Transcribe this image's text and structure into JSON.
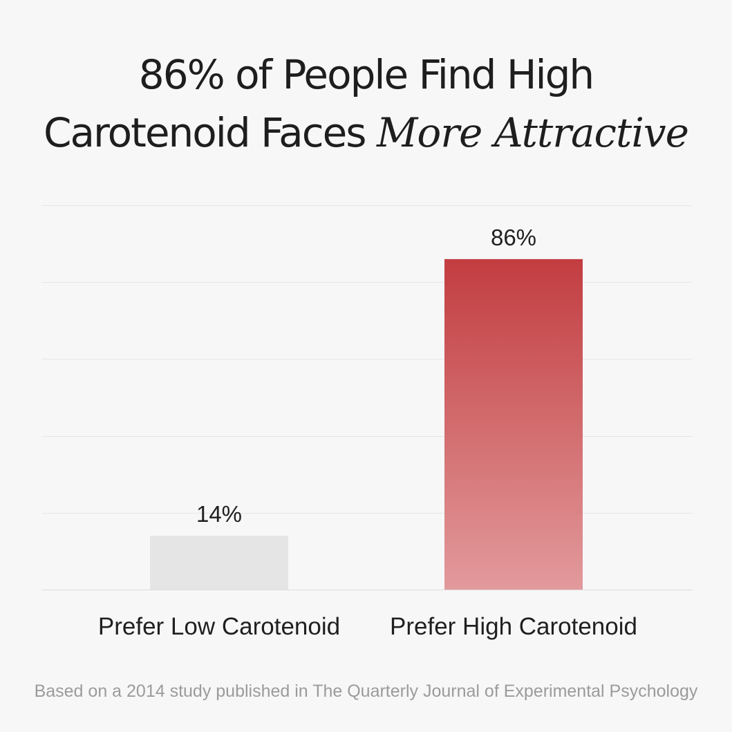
{
  "title": {
    "line1": "86% of People Find High",
    "line2_plain": "Carotenoid Faces ",
    "line2_emph": "More Attractive"
  },
  "footer": "Based on a 2014 study published in The Quarterly Journal of Experimental Psychology",
  "chart_data": {
    "type": "bar",
    "categories": [
      "Prefer Low Carotenoid",
      "Prefer High Carotenoid"
    ],
    "values": [
      14,
      86
    ],
    "data_labels": [
      "14%",
      "86%"
    ],
    "ylim": [
      0,
      100
    ],
    "grid": true,
    "legend": "none",
    "colors": {
      "low_bar": "#e5e5e5",
      "high_bar_top": "#c23d40",
      "high_bar_bottom": "#e29a9c",
      "gridline": "#e6e6e6",
      "axis_line": "#dcdcdc",
      "label_text": "#1f1f1f"
    }
  }
}
